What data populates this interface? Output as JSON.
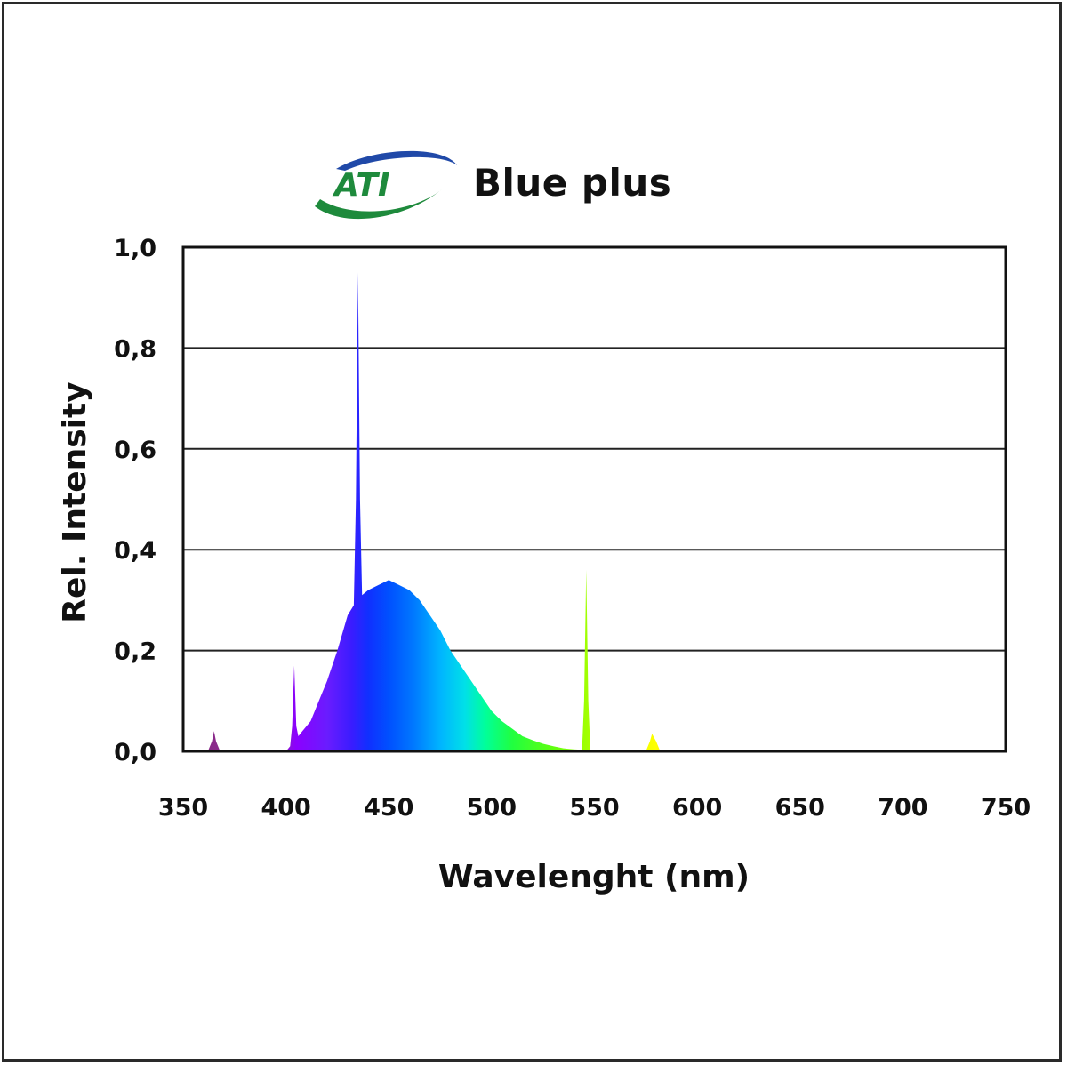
{
  "brand": {
    "logo_text": "ATI",
    "logo_colors": {
      "green": "#1e8a3c",
      "blue": "#2049a8"
    }
  },
  "chart_data": {
    "type": "area",
    "title": "Blue plus",
    "xlabel": "Wavelenght (nm)",
    "ylabel": "Rel. Intensity",
    "xlim": [
      350,
      750
    ],
    "ylim": [
      0,
      1.0
    ],
    "x_ticks": [
      350,
      400,
      450,
      500,
      550,
      600,
      650,
      700,
      750
    ],
    "x_tick_labels": [
      "350",
      "400",
      "450",
      "500",
      "550",
      "600",
      "650",
      "700",
      "750"
    ],
    "y_ticks": [
      0,
      0.2,
      0.4,
      0.6,
      0.8,
      1.0
    ],
    "y_tick_labels": [
      "0,0",
      "0,2",
      "0,4",
      "0,6",
      "0,8",
      "1,0"
    ],
    "grid": true,
    "legend": "none",
    "fill": "visible-spectrum-gradient",
    "series": [
      {
        "x": [
          350,
          362,
          364,
          365,
          366,
          368,
          400,
          402,
          403,
          404,
          405,
          406,
          408,
          412,
          416,
          420,
          425,
          430,
          433,
          434,
          435,
          436,
          437,
          440,
          445,
          450,
          455,
          460,
          465,
          470,
          475,
          480,
          485,
          490,
          495,
          500,
          505,
          510,
          515,
          520,
          525,
          530,
          535,
          540,
          544,
          545,
          546,
          547,
          548,
          550,
          560,
          575,
          577,
          578,
          580,
          582,
          590,
          750
        ],
        "y": [
          0,
          0,
          0.02,
          0.04,
          0.02,
          0,
          0,
          0.01,
          0.05,
          0.17,
          0.05,
          0.03,
          0.04,
          0.06,
          0.1,
          0.14,
          0.2,
          0.27,
          0.29,
          0.5,
          0.95,
          0.5,
          0.31,
          0.32,
          0.33,
          0.34,
          0.33,
          0.32,
          0.3,
          0.27,
          0.24,
          0.2,
          0.17,
          0.14,
          0.11,
          0.08,
          0.06,
          0.045,
          0.03,
          0.022,
          0.015,
          0.01,
          0.006,
          0.004,
          0.003,
          0.1,
          0.36,
          0.1,
          0.003,
          0.002,
          0,
          0,
          0.02,
          0.035,
          0.02,
          0,
          0,
          0
        ]
      }
    ]
  }
}
